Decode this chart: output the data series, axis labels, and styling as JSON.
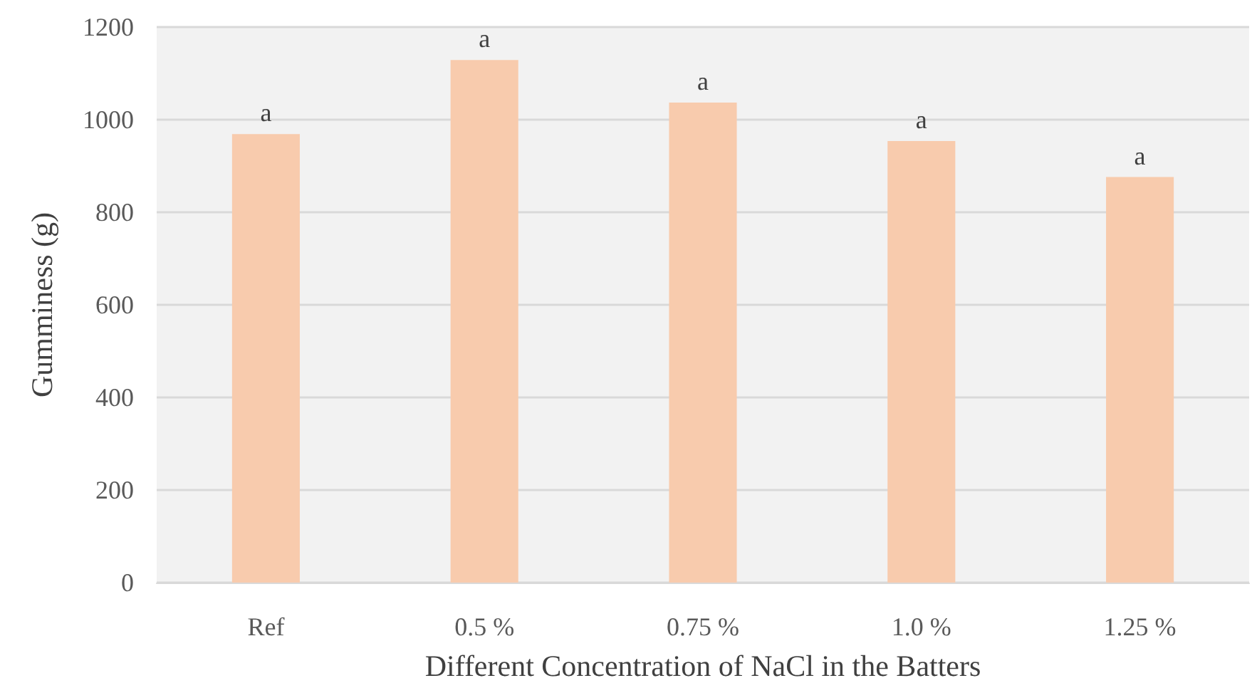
{
  "chart_data": {
    "type": "bar",
    "xlabel": "Different Concentration of NaCl in the Batters",
    "ylabel": "Gumminess (g)",
    "categories": [
      "Ref",
      "0.5 %",
      "0.75 %",
      "1.0 %",
      "1.25 %"
    ],
    "values": [
      969,
      1129,
      1037,
      954,
      876
    ],
    "color": "#f8cbad",
    "ylim": [
      0,
      1200
    ],
    "yticks": [
      0,
      200,
      400,
      600,
      800,
      1000,
      1200
    ],
    "grid": "y",
    "annotations": [
      {
        "text": "a",
        "x": "Ref",
        "y": 969
      },
      {
        "text": "a",
        "x": "0.5 %",
        "y": 1129
      },
      {
        "text": "a",
        "x": "0.75 %",
        "y": 1037
      },
      {
        "text": "a",
        "x": "1.0 %",
        "y": 954
      },
      {
        "text": "a",
        "x": "1.25 %",
        "y": 876
      }
    ]
  }
}
